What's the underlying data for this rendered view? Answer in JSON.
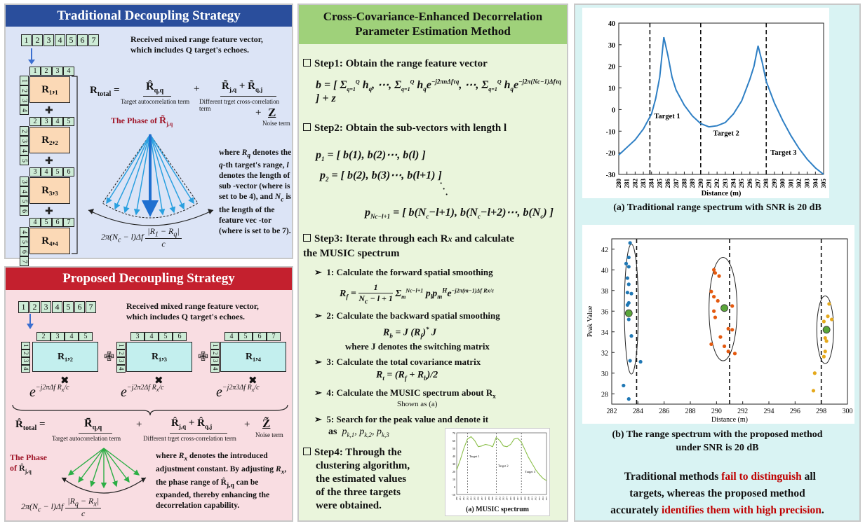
{
  "left_top": {
    "title": "Traditional Decoupling Strategy",
    "vector": [
      "1",
      "2",
      "3",
      "4",
      "5",
      "6",
      "7"
    ],
    "vector_caption": "Received mixed range feature vector, which includes Q target's echoes.",
    "submatrices": [
      {
        "top": [
          "1",
          "2",
          "3",
          "4"
        ],
        "label": "R₁,₁"
      },
      {
        "top": [
          "2",
          "3",
          "4",
          "5"
        ],
        "label": "R₂,₂"
      },
      {
        "top": [
          "3",
          "4",
          "5",
          "6"
        ],
        "label": "R₃,₃"
      },
      {
        "top": [
          "4",
          "5",
          "6",
          "7"
        ],
        "label": "R₄,₄"
      }
    ],
    "rtotal": "R",
    "rtotal_sub": "total",
    "term1": "R̂",
    "term1_sub": "q,q",
    "term1_caption": "Target autocorrelation term",
    "term2": "R̃",
    "term2_sub_a": "j,q",
    "term2_plus": " + ",
    "term2_b": "R̃",
    "term2_sub_b": "q,j",
    "term2_caption": "Different trget cross-correlation term",
    "term3": "Z",
    "term3_caption": "Noise term",
    "phase_label": "The Phase of",
    "phase_sym": "R̃",
    "phase_sub": "j,q",
    "desc": "where R<sub>q</sub> denotes the q-th target's range, l denotes the length of sub -vector (where is set to be 4), and N<sub>c</sub> is the length of the feature vec -tor (where is set to be 7).",
    "formula": "2π(N<sub>c</sub> − l)Δf"
  },
  "left_bottom": {
    "title": "Proposed Decoupling Strategy",
    "vector": [
      "1",
      "2",
      "3",
      "4",
      "5",
      "6",
      "7"
    ],
    "vector_caption": "Received mixed range feature vector, which includes Q target's echoes.",
    "submatrices": [
      {
        "top": [
          "2",
          "3",
          "4",
          "5"
        ],
        "side": [
          "1",
          "2",
          "3",
          "4"
        ],
        "label": "R₁,₂",
        "exp": "−j2πΔf"
      },
      {
        "top": [
          "3",
          "4",
          "5",
          "6"
        ],
        "side": [
          "1",
          "2",
          "3",
          "4"
        ],
        "label": "R₁,₃",
        "exp": "−j2π2Δf"
      },
      {
        "top": [
          "4",
          "5",
          "6",
          "7"
        ],
        "side": [
          "1",
          "2",
          "3",
          "4"
        ],
        "label": "R₁,₄",
        "exp": "−j2π3Δf"
      }
    ],
    "rtotal": "R̂",
    "rtotal_sub": "total",
    "term1": "R̄",
    "term1_sub": "q,q",
    "term1_caption": "Target autocorrelation term",
    "term2": "R̂",
    "term2_sub_a": "j,q",
    "term2_plus": " + ",
    "term2_b": "R̂",
    "term2_sub_b": "q,j",
    "term2_caption": "Different trget cross-correlation term",
    "term3": "Z̃",
    "term3_caption": "Noise term",
    "phase_label_1": "The Phase",
    "phase_label_2": "of",
    "phase_sym": "R̂",
    "phase_sub": "j,q",
    "desc": "where R<sub>x</sub> denotes the introduced adjustment constant. By adjusting R<sub>x</sub>, the phase range of R̂<sub>j,q</sub> can be expanded, thereby enhancing the decorrelation capability."
  },
  "middle": {
    "title_line1": "Cross-Covariance-Enhanced Decorrelation",
    "title_line2": "Parameter Estimation Method",
    "step1": "Step1: Obtain the range feature vector",
    "step2": "Step2: Obtain the sub-vectors with length l",
    "step3_line1": "Step3: Iterate through each R",
    "step3_line1b": "and calculate",
    "step3_line2": "the MUSIC spectrum",
    "sub1": "1: Calculate the forward spatial smoothing",
    "sub2": "2: Calculate the backward spatial smoothing",
    "sub2_where": "where J denotes the switching matrix",
    "sub3": "3: Calculate the total covariance matrix",
    "sub4": "4: Calculate the MUSIC spectrum about R",
    "sub4_note": "Shown as (a)",
    "sub5": "5: Search for the peak value and denote it",
    "sub5_as": "as",
    "step4": [
      "Step4: Through the",
      "clustering algorithm,",
      "the estimated values",
      "of the three targets",
      "were obtained."
    ],
    "music_caption": "(a) MUSIC spectrum",
    "music_targets": [
      "Target 1",
      "Target 2",
      "Target 3"
    ]
  },
  "right": {
    "caption_a": "(a) Traditional range spectrum with SNR is 20 dB",
    "caption_b_1": "(b) The range spectrum with the proposed method",
    "caption_b_2": "under SNR is 20 dB",
    "conclusion_1a": "Traditional methods ",
    "conclusion_1b": "fail to distinguish",
    "conclusion_1c": " all",
    "conclusion_2": "targets, whereas the proposed method",
    "conclusion_3a": "accurately ",
    "conclusion_3b": "identifies them with high precision",
    "conclusion_3c": "."
  },
  "colors": {
    "blue_header": "#2a4e9c",
    "red_header": "#c4202e",
    "green_header": "#9fd17a",
    "left_top_bg": "#dce4f6",
    "left_bottom_bg": "#f9dde2",
    "middle_bg": "#eaf5dc",
    "right_bg": "#d9f3f3",
    "accent_red": "#c00000"
  },
  "chart_data": [
    {
      "type": "line",
      "xlabel": "Distance (m)",
      "ylabel": "",
      "xlim": [
        280,
        305
      ],
      "ylim": [
        -30,
        40
      ],
      "xticks": [
        280,
        281,
        282,
        283,
        284,
        285,
        286,
        287,
        288,
        289,
        290,
        291,
        292,
        293,
        294,
        295,
        296,
        297,
        298,
        299,
        300,
        301,
        302,
        303,
        304,
        305
      ],
      "yticks": [
        -30,
        -20,
        -10,
        0,
        10,
        20,
        30,
        40
      ],
      "series": [
        {
          "x": [
            280,
            281,
            282,
            283,
            284,
            284.5,
            285,
            285.5,
            286,
            286.5,
            287,
            288,
            289,
            290,
            291,
            292,
            293,
            294,
            295,
            296,
            296.5,
            297,
            297.5,
            298,
            299,
            300,
            301,
            302,
            303,
            304,
            305
          ],
          "values": [
            -21,
            -17.5,
            -14,
            -9,
            -2,
            5,
            15,
            33.5,
            25,
            15,
            9,
            2,
            -3,
            -6.5,
            -8,
            -7.5,
            -6,
            -2,
            4,
            14,
            20,
            29.5,
            22,
            13,
            3,
            -5,
            -12,
            -18,
            -23,
            -27,
            -30
          ]
        }
      ],
      "annotations": [
        {
          "text": "Target 1",
          "x": 283.8,
          "y": -4
        },
        {
          "text": "Target 2",
          "x": 291,
          "y": -12
        },
        {
          "text": "Target 3",
          "x": 298,
          "y": -21
        }
      ],
      "vlines": [
        283.8,
        290,
        298
      ]
    },
    {
      "type": "scatter",
      "xlabel": "Distance (m)",
      "ylabel": "Peak Value",
      "xlim": [
        282,
        300
      ],
      "ylim": [
        27,
        43
      ],
      "xticks": [
        282,
        284,
        286,
        288,
        290,
        292,
        294,
        296,
        298,
        300
      ],
      "yticks": [
        28,
        30,
        32,
        34,
        36,
        38,
        40,
        42
      ],
      "series": [
        {
          "color": "#1f77b4",
          "points": [
            [
              283.4,
              42.6
            ],
            [
              283.3,
              41.2
            ],
            [
              283.1,
              40.6
            ],
            [
              283.3,
              40.3
            ],
            [
              283.2,
              39.2
            ],
            [
              283.3,
              38.6
            ],
            [
              283.2,
              37.8
            ],
            [
              283.5,
              37.7
            ],
            [
              283.3,
              36.8
            ],
            [
              283.2,
              36.6
            ],
            [
              283.3,
              35.2
            ],
            [
              283.5,
              33.6
            ],
            [
              283.4,
              31.2
            ],
            [
              284.2,
              31.1
            ],
            [
              282.9,
              28.8
            ],
            [
              283.3,
              27.5
            ]
          ]
        },
        {
          "color": "#e4590f",
          "points": [
            [
              289.8,
              40.0
            ],
            [
              289.9,
              39.7
            ],
            [
              290.2,
              39.4
            ],
            [
              289.6,
              37.9
            ],
            [
              289.8,
              37.4
            ],
            [
              290.1,
              37.0
            ],
            [
              289.8,
              36.0
            ],
            [
              291.2,
              36.5
            ],
            [
              289.9,
              35.4
            ],
            [
              290.9,
              34.3
            ],
            [
              291.2,
              34.2
            ],
            [
              290.3,
              33.5
            ],
            [
              289.6,
              32.8
            ],
            [
              290.6,
              32.6
            ],
            [
              290.9,
              32.1
            ],
            [
              291.4,
              31.9
            ]
          ]
        },
        {
          "color": "#e5a91c",
          "points": [
            [
              298.6,
              36.7
            ],
            [
              298.5,
              35.5
            ],
            [
              298.8,
              35.2
            ],
            [
              298.2,
              35.0
            ],
            [
              298.3,
              33.4
            ],
            [
              298.4,
              33.1
            ],
            [
              298.3,
              32.1
            ],
            [
              298.2,
              31.6
            ],
            [
              297.5,
              30.0
            ],
            [
              297.4,
              28.3
            ]
          ]
        },
        {
          "color": "#5aa63a",
          "points": [
            [
              283.3,
              35.8
            ],
            [
              290.6,
              36.3
            ],
            [
              298.4,
              34.2
            ]
          ]
        }
      ],
      "vlines": [
        283.9,
        291.0,
        298.0
      ]
    },
    {
      "type": "line",
      "title": "(a) MUSIC spectrum",
      "xlim": [
        280,
        305
      ],
      "ylim": [
        -10,
        70
      ],
      "series": [
        {
          "x": [
            280,
            281,
            282,
            283,
            284,
            285,
            286,
            287,
            288,
            289,
            290,
            291,
            292,
            293,
            294,
            295,
            296,
            297,
            298,
            299,
            300,
            301,
            302,
            303,
            304,
            305
          ],
          "values": [
            22,
            35,
            50,
            62,
            65,
            60,
            52,
            53,
            55,
            54,
            52,
            64,
            60,
            53,
            52,
            55,
            62,
            63,
            58,
            48,
            38,
            30,
            22,
            16,
            11,
            8
          ]
        }
      ]
    }
  ]
}
